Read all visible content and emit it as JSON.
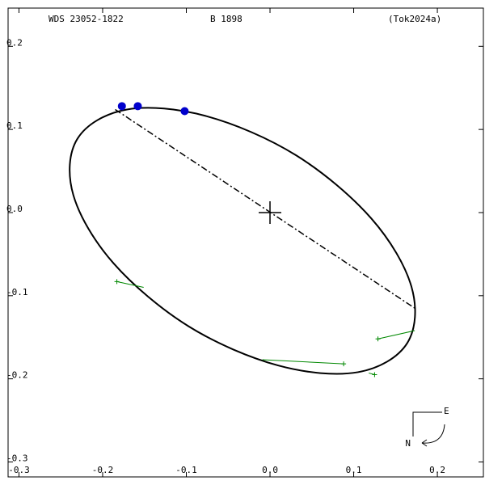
{
  "chart_data": {
    "type": "orbit",
    "title": "WDS 23052-1822",
    "subtitle": "B  1898",
    "reference": "(Tok2024a)",
    "xlim": [
      -0.313,
      0.255
    ],
    "ylim": [
      -0.318,
      0.246
    ],
    "xticks": [
      -0.3,
      -0.2,
      -0.1,
      {
        "value": 0,
        "label": "0.0"
      },
      0.1,
      0.2
    ],
    "yticks": [
      0.2,
      0.1,
      {
        "value": 0,
        "label": "0.0"
      },
      -0.1,
      -0.2,
      -0.3
    ],
    "orbit": {
      "color": "#000000",
      "x": [
        0.164,
        0.169,
        0.121,
        0.031,
        -0.076,
        -0.171,
        -0.23,
        -0.235,
        -0.187,
        -0.097,
        0.01,
        0.105
      ],
      "y": [
        -0.157,
        -0.089,
        -0.007,
        0.069,
        0.116,
        0.124,
        0.089,
        0.021,
        -0.061,
        -0.137,
        -0.184,
        -0.192
      ]
    },
    "node_line": {
      "color": "#000000",
      "x": [
        -0.185,
        0.173
      ],
      "y": [
        0.124,
        -0.115
      ]
    },
    "center": {
      "x": 0,
      "y": 0
    },
    "points": {
      "color": "#0000cc",
      "x": [
        -0.177,
        -0.158,
        -0.102
      ],
      "y": [
        0.128,
        0.128,
        0.122
      ]
    },
    "measures": {
      "color": "#008800",
      "x": [
        [
          -0.183,
          -0.151
        ],
        [
          0.088,
          -0.009
        ],
        [
          0.125,
          0.118
        ],
        [
          0.129,
          0.173
        ]
      ],
      "y": [
        [
          -0.083,
          -0.09
        ],
        [
          -0.182,
          -0.177
        ],
        [
          -0.195,
          -0.193
        ],
        [
          -0.152,
          -0.142
        ]
      ]
    },
    "compass": {
      "east": "E",
      "north": "N"
    }
  }
}
